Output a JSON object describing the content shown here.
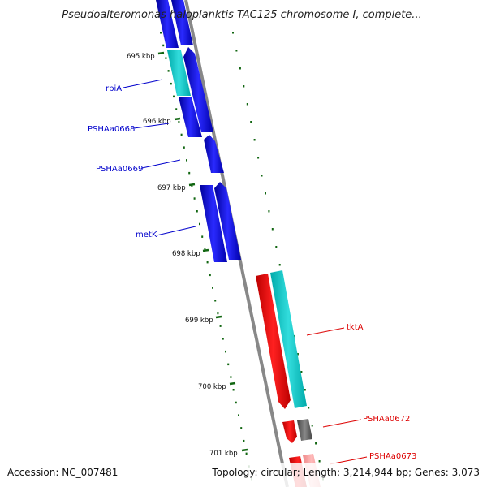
{
  "title": "Pseudoalteromonas haloplanktis TAC125 chromosome I, complete...",
  "accession": "Accession: NC_007481",
  "summary": "Topology: circular; Length: 3,214,944 bp; Genes: 3,073",
  "colors": {
    "forward": "#0000ee",
    "reverse": "#ee0000",
    "rna": "#00cccc",
    "pseudo": "#555555",
    "ticks": "#116611",
    "backbone": "#888888"
  },
  "ticks": [
    {
      "label": "695 kbp"
    },
    {
      "label": "696 kbp"
    },
    {
      "label": "697 kbp"
    },
    {
      "label": "698 kbp"
    },
    {
      "label": "699 kbp"
    },
    {
      "label": "700 kbp"
    },
    {
      "label": "701 kbp"
    }
  ],
  "genes": [
    {
      "label": "rpiA",
      "strand": "forward"
    },
    {
      "label": "PSHAa0668",
      "strand": "forward"
    },
    {
      "label": "PSHAa0669",
      "strand": "forward"
    },
    {
      "label": "metK",
      "strand": "forward"
    },
    {
      "label": "tktA",
      "strand": "reverse"
    },
    {
      "label": "PSHAa0672",
      "strand": "reverse"
    },
    {
      "label": "PSHAa0673",
      "strand": "reverse"
    }
  ]
}
